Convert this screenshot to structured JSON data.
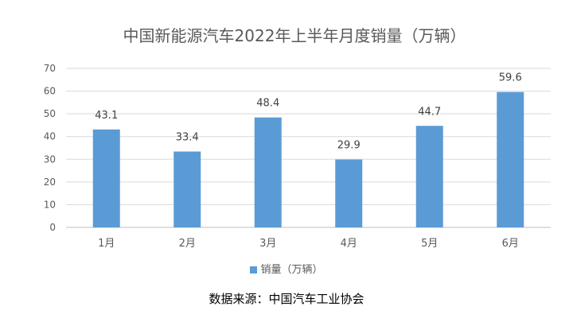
{
  "chart_data": {
    "type": "bar",
    "title": "中国新能源汽车2022年上半年月度销量（万辆）",
    "categories": [
      "1月",
      "2月",
      "3月",
      "4月",
      "5月",
      "6月"
    ],
    "series": [
      {
        "name": "销量（万辆）",
        "values": [
          43.1,
          33.4,
          48.4,
          29.9,
          44.7,
          59.6
        ]
      }
    ],
    "data_labels": [
      "43.1",
      "33.4",
      "48.4",
      "29.9",
      "44.7",
      "59.6"
    ],
    "ylim": [
      0,
      70
    ],
    "yticks": [
      0,
      10,
      20,
      30,
      40,
      50,
      60,
      70
    ],
    "grid": true,
    "legend_position": "bottom",
    "bar_color": "#5B9BD5"
  },
  "source_text": "数据来源：中国汽车工业协会"
}
